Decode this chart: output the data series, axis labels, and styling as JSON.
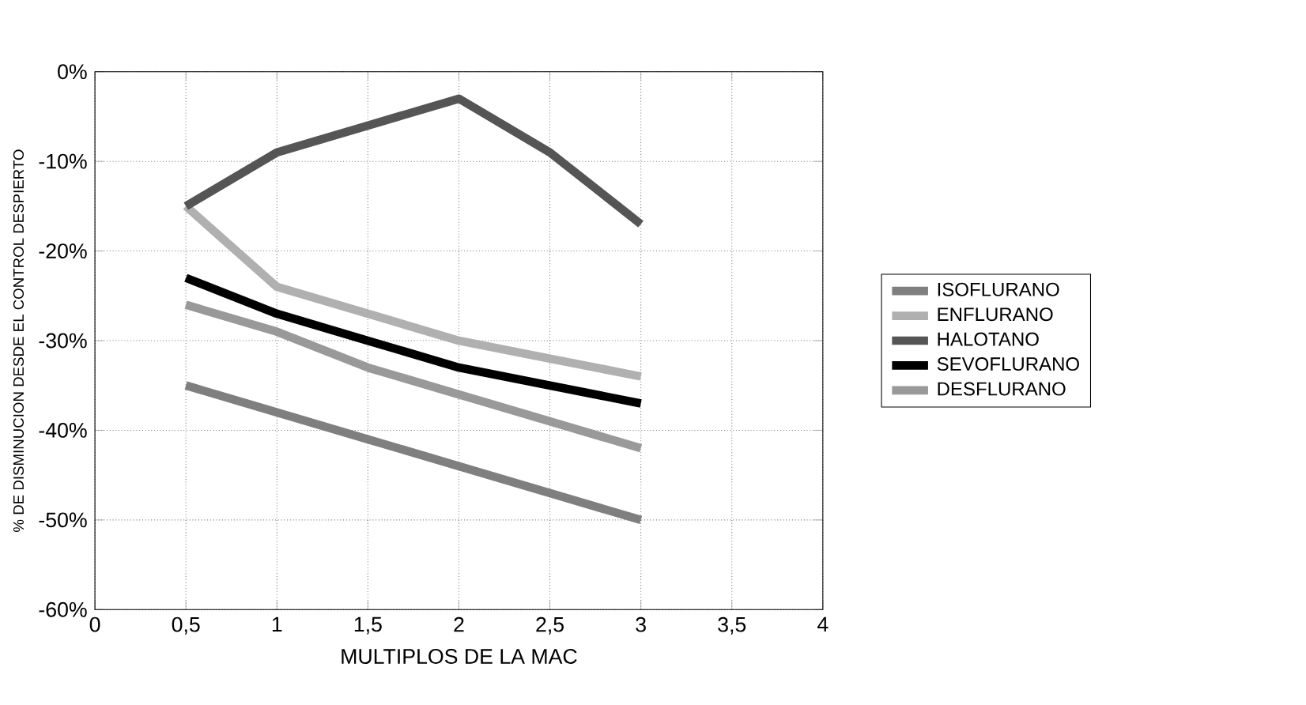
{
  "chart_data": {
    "type": "line",
    "xlabel": "MULTIPLOS DE LA MAC",
    "ylabel": "% DE DISMINUCION DESDE EL CONTROL DESPIERTO",
    "x": [
      0.5,
      1,
      1.5,
      2,
      2.5,
      3
    ],
    "series": [
      {
        "name": "ISOFLURANO",
        "color": "#7f7f7f",
        "values": [
          -35,
          -38,
          -41,
          -44,
          -47,
          -50
        ]
      },
      {
        "name": "ENFLURANO",
        "color": "#b0b0b0",
        "values": [
          -15,
          -24,
          -27,
          -30,
          -32,
          -34
        ]
      },
      {
        "name": "HALOTANO",
        "color": "#555555",
        "values": [
          -15,
          -9,
          -6,
          -3,
          -9,
          -17
        ]
      },
      {
        "name": "SEVOFLURANO",
        "color": "#000000",
        "values": [
          -23,
          -27,
          -30,
          -33,
          -35,
          -37
        ]
      },
      {
        "name": "DESFLURANO",
        "color": "#999999",
        "values": [
          -26,
          -29,
          -33,
          -36,
          -39,
          -42
        ]
      }
    ],
    "xlim": [
      0,
      4
    ],
    "xticks": [
      0,
      {
        "value": 0.5,
        "label": "0,5"
      },
      1,
      {
        "value": 1.5,
        "label": "1,5"
      },
      2,
      {
        "value": 2.5,
        "label": "2,5"
      },
      3,
      {
        "value": 3.5,
        "label": "3,5"
      },
      4
    ],
    "ylim": [
      -60,
      0
    ],
    "yticks": [
      {
        "value": -60,
        "label": "-60%"
      },
      {
        "value": -50,
        "label": "-50%"
      },
      {
        "value": -40,
        "label": "-40%"
      },
      {
        "value": -30,
        "label": "-30%"
      },
      {
        "value": -20,
        "label": "-20%"
      },
      {
        "value": -10,
        "label": "-10%"
      },
      {
        "value": 0,
        "label": "0%"
      }
    ],
    "grid": true,
    "legend": "right",
    "marker": "none",
    "line_style": "solid"
  }
}
